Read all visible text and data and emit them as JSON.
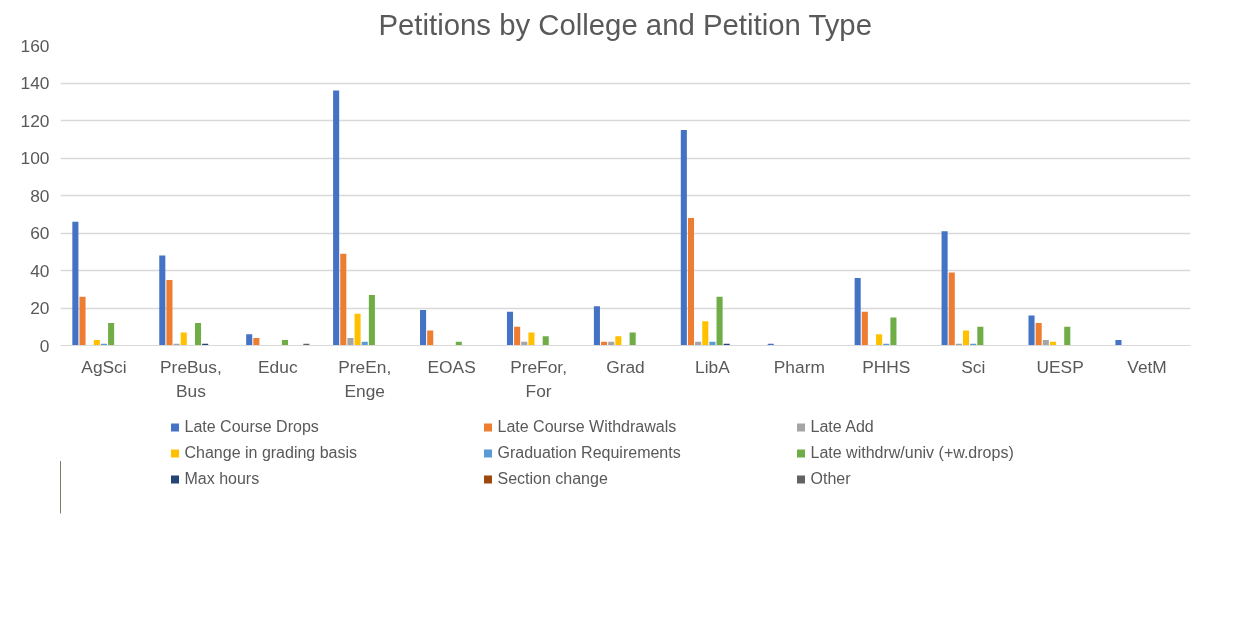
{
  "chart_data": {
    "type": "bar",
    "title": "Petitions by College and Petition Type",
    "categories": [
      "AgSci",
      "PreBus, Bus",
      "Educ",
      "PreEn, Enge",
      "EOAS",
      "PreFor, For",
      "Grad",
      "LibA",
      "Pharm",
      "PHHS",
      "Sci",
      "UESP",
      "VetM"
    ],
    "series": [
      {
        "name": "Late Course Drops",
        "color": "#4472c4",
        "values": [
          66,
          48,
          6,
          136,
          19,
          18,
          21,
          115,
          1,
          36,
          61,
          16,
          3
        ]
      },
      {
        "name": "Late Course Withdrawals",
        "color": "#ed7d31",
        "values": [
          26,
          35,
          4,
          49,
          8,
          10,
          2,
          68,
          0,
          18,
          39,
          12,
          0
        ]
      },
      {
        "name": "Late Add",
        "color": "#a5a5a5",
        "values": [
          0,
          1,
          0,
          4,
          0,
          2,
          2,
          2,
          0,
          0,
          1,
          3,
          0
        ]
      },
      {
        "name": "Change in grading basis",
        "color": "#ffc000",
        "values": [
          3,
          7,
          0,
          17,
          0,
          7,
          5,
          13,
          0,
          6,
          8,
          2,
          0
        ]
      },
      {
        "name": "Graduation Requirements",
        "color": "#5b9bd5",
        "values": [
          1,
          0,
          0,
          2,
          0,
          0,
          0,
          2,
          0,
          1,
          1,
          0,
          0
        ]
      },
      {
        "name": "Late withdrw/univ (+w.drops)",
        "color": "#70ad47",
        "values": [
          12,
          12,
          3,
          27,
          2,
          5,
          7,
          26,
          0,
          15,
          10,
          10,
          0
        ]
      },
      {
        "name": "Max hours",
        "color": "#264478",
        "values": [
          0,
          1,
          0,
          0,
          0,
          0,
          0,
          1,
          0,
          0,
          0,
          0,
          0
        ]
      },
      {
        "name": "Section change",
        "color": "#9e480e",
        "values": [
          0,
          0,
          0,
          0,
          0,
          0,
          0,
          0,
          0,
          0,
          0,
          0,
          0
        ]
      },
      {
        "name": "Other",
        "color": "#636363",
        "values": [
          0,
          0,
          1,
          0,
          0,
          0,
          0,
          0,
          0,
          0,
          0,
          0,
          0
        ]
      }
    ],
    "ylim": [
      0,
      160
    ],
    "yticks": [
      0,
      20,
      40,
      60,
      80,
      100,
      120,
      140,
      160
    ],
    "grid": "y",
    "legend": "bottom"
  }
}
